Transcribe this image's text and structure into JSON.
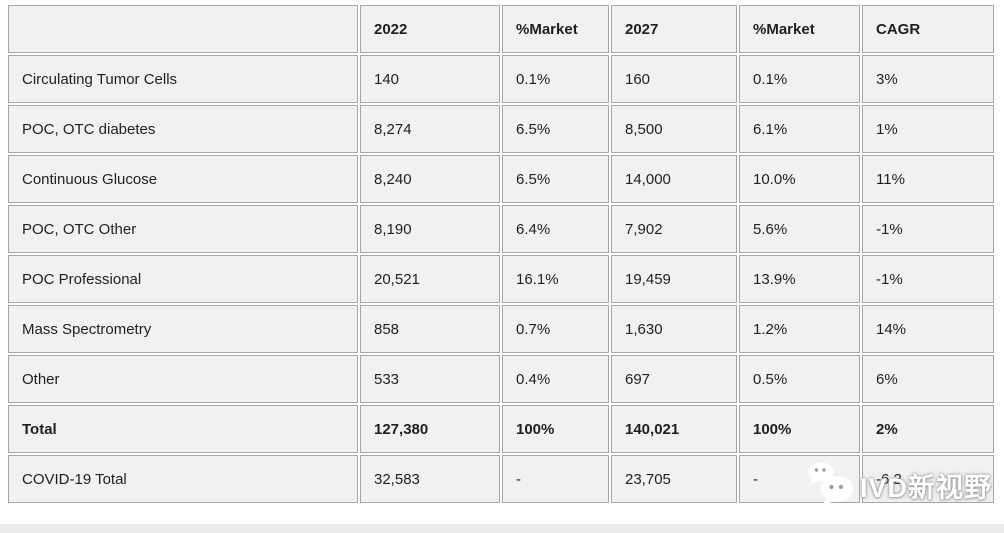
{
  "chart_data": {
    "type": "table",
    "title": "",
    "columns": [
      "",
      "2022",
      "%Market",
      "2027",
      "%Market",
      "CAGR"
    ],
    "rows": [
      {
        "cells": [
          "Circulating Tumor Cells",
          "140",
          "0.1%",
          "160",
          "0.1%",
          "3%"
        ],
        "bold": false
      },
      {
        "cells": [
          "POC, OTC diabetes",
          "8,274",
          "6.5%",
          "8,500",
          "6.1%",
          "1%"
        ],
        "bold": false
      },
      {
        "cells": [
          "Continuous Glucose",
          "8,240",
          "6.5%",
          "14,000",
          "10.0%",
          "11%"
        ],
        "bold": false
      },
      {
        "cells": [
          "POC, OTC Other",
          "8,190",
          "6.4%",
          "7,902",
          "5.6%",
          "-1%"
        ],
        "bold": false
      },
      {
        "cells": [
          "POC Professional",
          "20,521",
          "16.1%",
          "19,459",
          "13.9%",
          "-1%"
        ],
        "bold": false
      },
      {
        "cells": [
          "Mass Spectrometry",
          "858",
          "0.7%",
          "1,630",
          "1.2%",
          "14%"
        ],
        "bold": false
      },
      {
        "cells": [
          "Other",
          "533",
          "0.4%",
          "697",
          "0.5%",
          "6%"
        ],
        "bold": false
      },
      {
        "cells": [
          "Total",
          "127,380",
          "100%",
          "140,021",
          "100%",
          "2%"
        ],
        "bold": true
      },
      {
        "cells": [
          "COVID-19 Total",
          "32,583",
          "-",
          "23,705",
          "-",
          "-6.2"
        ],
        "bold": false
      }
    ]
  },
  "watermark": {
    "icon": "wechat-icon",
    "text": "IVD新视野"
  },
  "colors": {
    "cell_bg": "#f1f1f1",
    "grid_line": "#a6a6a6",
    "text": "#1f1f1f",
    "watermark_text": "#ffffff",
    "footer_strip": "#ececec"
  }
}
